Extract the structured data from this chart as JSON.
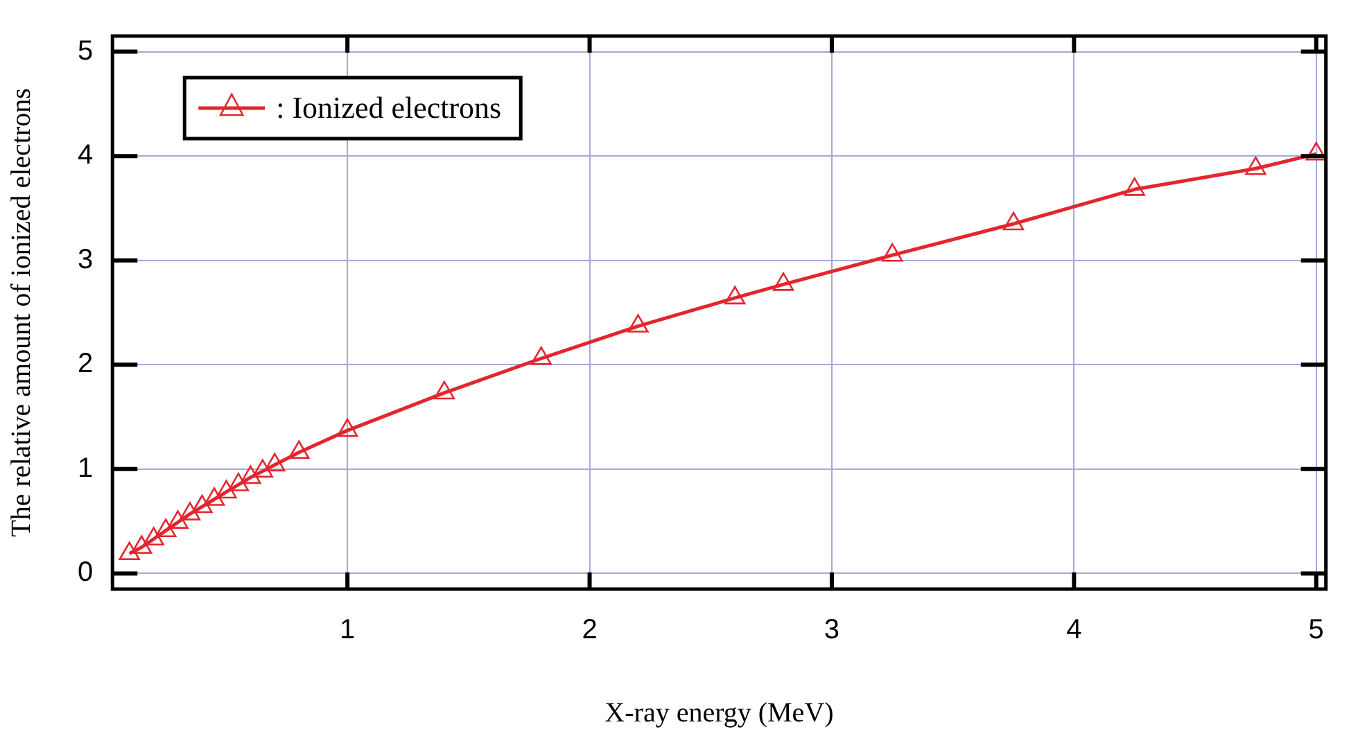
{
  "chart_data": {
    "type": "line",
    "xlabel": "X-ray energy (MeV)",
    "ylabel": "The relative amount of ionized electrons",
    "x": [
      0.1,
      0.15,
      0.2,
      0.25,
      0.3,
      0.35,
      0.4,
      0.45,
      0.5,
      0.55,
      0.6,
      0.65,
      0.7,
      0.8,
      1.0,
      1.4,
      1.8,
      2.2,
      2.6,
      2.8,
      3.25,
      3.75,
      4.25,
      4.75,
      5.0
    ],
    "series": [
      {
        "name": ": Ionized electrons",
        "color": "#e3262e",
        "values": [
          0.19,
          0.25,
          0.33,
          0.41,
          0.49,
          0.57,
          0.64,
          0.71,
          0.78,
          0.85,
          0.92,
          0.98,
          1.04,
          1.16,
          1.37,
          1.73,
          2.06,
          2.37,
          2.64,
          2.77,
          3.05,
          3.35,
          3.68,
          3.88,
          4.02
        ]
      }
    ],
    "xlim": [
      0.03,
      5.04
    ],
    "xticks": [
      1,
      2,
      3,
      4,
      5
    ],
    "ylim": [
      -0.15,
      5.15
    ],
    "yticks": [
      0,
      1,
      2,
      3,
      4,
      5
    ],
    "grid": true,
    "legend": "top left",
    "marker": "triangle",
    "line_style": "solid"
  }
}
